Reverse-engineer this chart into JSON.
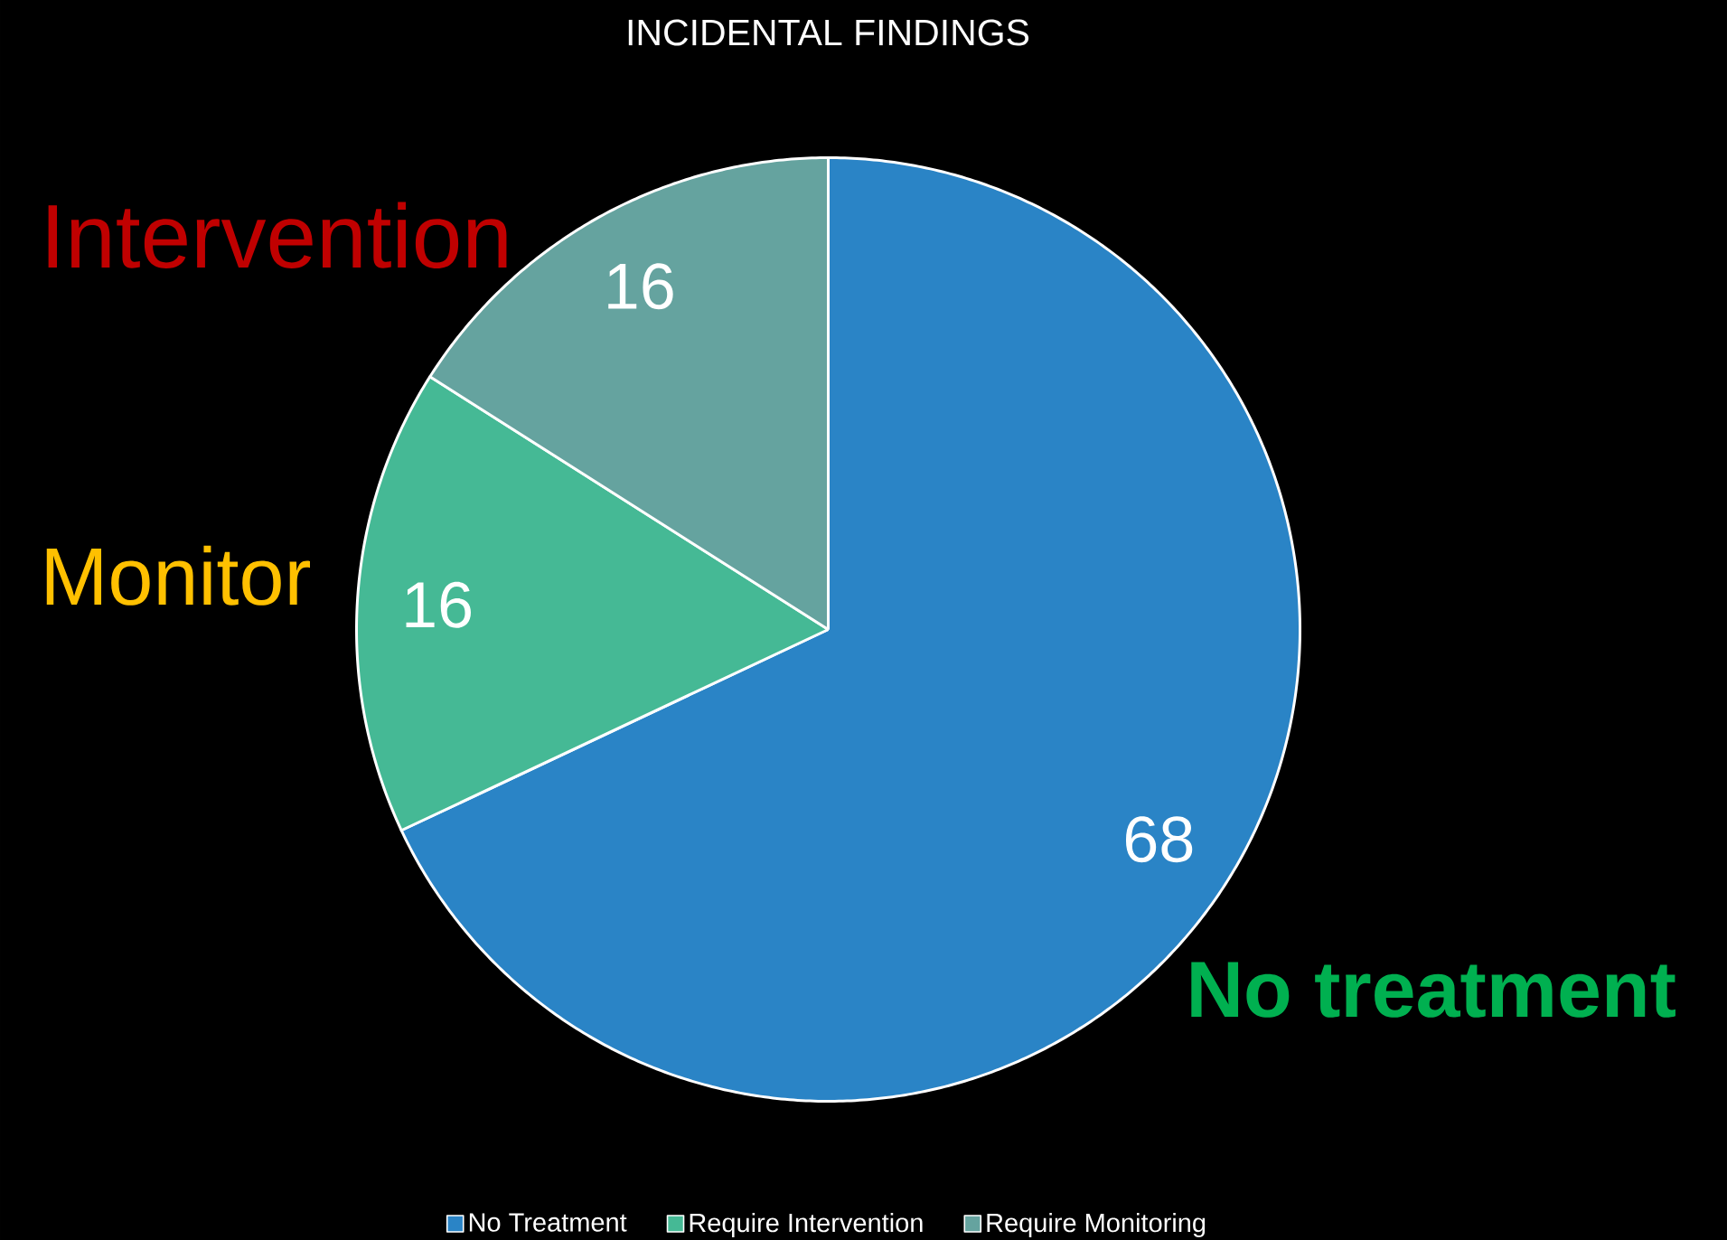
{
  "chart_data": {
    "type": "pie",
    "title": "INCIDENTAL FINDINGS",
    "categories": [
      "No Treatment",
      "Require Intervention",
      "Require Monitoring"
    ],
    "values": [
      68,
      16,
      16
    ],
    "colors": [
      "#2a84c6",
      "#45b995",
      "#65a39f"
    ],
    "data_labels": true,
    "legend": "bottom",
    "annotations": [
      "Intervention",
      "Monitor",
      "No treatment"
    ]
  }
}
